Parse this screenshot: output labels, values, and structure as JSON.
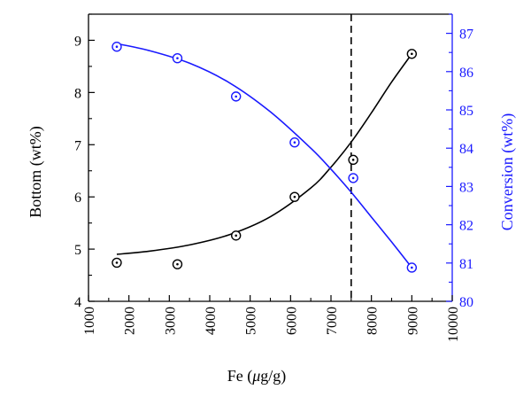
{
  "chart_data": {
    "type": "scatter",
    "xlabel_pre": "Fe (",
    "xlabel_unit_italic": "μ",
    "xlabel_post": "g/g)",
    "ylabel_left": "Bottom (wt%)",
    "ylabel_right": "Conversion (wt%)",
    "xlim": [
      1000,
      10000
    ],
    "ylim_left": [
      4,
      9.5
    ],
    "ylim_right": [
      80,
      87.5
    ],
    "x_ticks": [
      "1000",
      "2000",
      "3000",
      "4000",
      "5000",
      "6000",
      "7000",
      "8000",
      "9000",
      "10000"
    ],
    "y_left_ticks": [
      "4",
      "5",
      "6",
      "7",
      "8",
      "9"
    ],
    "y_right_ticks": [
      "80",
      "81",
      "82",
      "83",
      "84",
      "85",
      "86",
      "87"
    ],
    "vline_x": 7500,
    "grid": false,
    "series": [
      {
        "axis": "left",
        "color": "#000000",
        "x": [
          1700,
          3200,
          4650,
          6100,
          7550,
          9000
        ],
        "values": [
          4.74,
          4.71,
          5.26,
          6.0,
          6.71,
          8.74
        ],
        "fit": [
          [
            1700,
            4.9
          ],
          [
            2500,
            4.96
          ],
          [
            3500,
            5.08
          ],
          [
            4500,
            5.28
          ],
          [
            5500,
            5.62
          ],
          [
            6500,
            6.17
          ],
          [
            7000,
            6.57
          ],
          [
            7500,
            7.05
          ],
          [
            8000,
            7.61
          ],
          [
            8500,
            8.2
          ],
          [
            9000,
            8.74
          ]
        ]
      },
      {
        "axis": "right",
        "color": "#1a1aff",
        "x": [
          1700,
          3200,
          4650,
          6100,
          7550,
          9000
        ],
        "values": [
          86.65,
          86.35,
          85.35,
          84.15,
          83.22,
          80.88
        ],
        "fit": [
          [
            1700,
            86.73
          ],
          [
            2500,
            86.55
          ],
          [
            3500,
            86.22
          ],
          [
            4500,
            85.7
          ],
          [
            5500,
            84.95
          ],
          [
            6500,
            84.0
          ],
          [
            7000,
            83.45
          ],
          [
            7500,
            82.85
          ],
          [
            8000,
            82.2
          ],
          [
            8500,
            81.55
          ],
          [
            9000,
            80.88
          ]
        ]
      }
    ]
  }
}
